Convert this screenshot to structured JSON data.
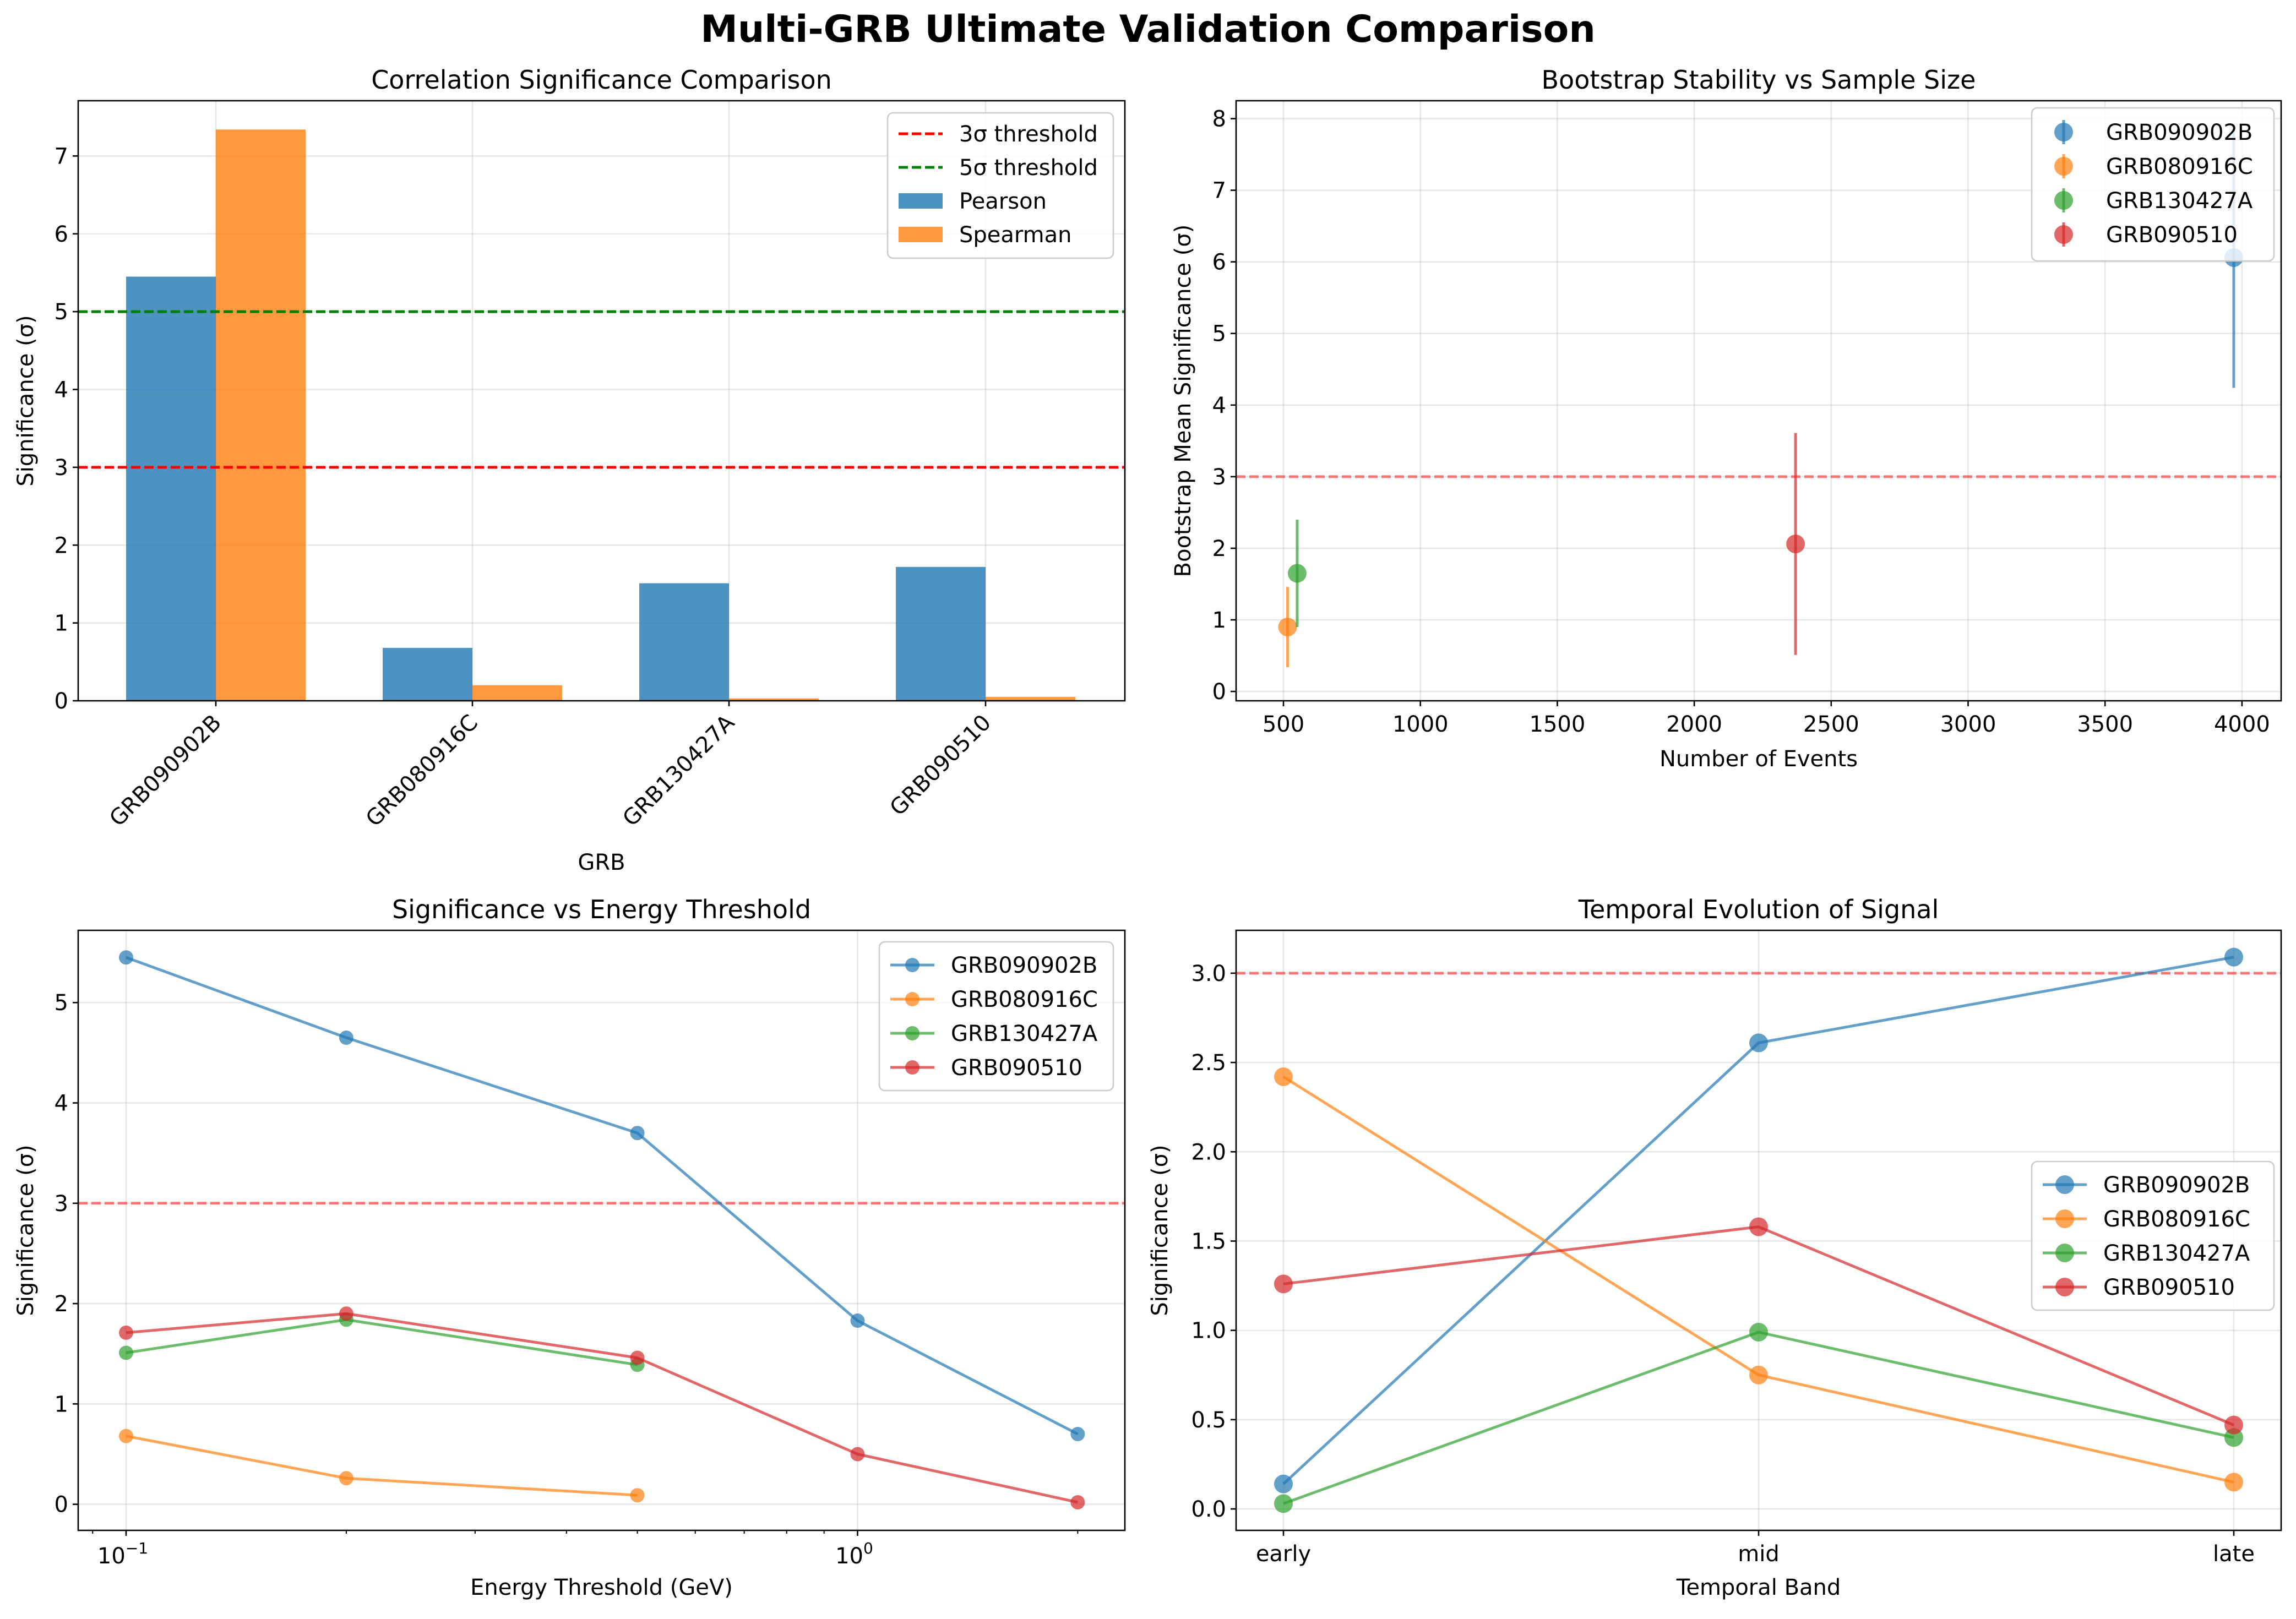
{
  "figure": {
    "title": "Multi-GRB Ultimate Validation Comparison"
  },
  "colors": {
    "GRB090902B": "#1f77b4",
    "GRB080916C": "#ff7f0e",
    "GRB130427A": "#2ca02c",
    "GRB090510": "#d62728",
    "sigma3": "#ff0000",
    "sigma5": "#008000"
  },
  "chart_data": [
    {
      "id": "bar",
      "type": "bar",
      "title": "Correlation Significance Comparison",
      "xlabel": "GRB",
      "ylabel": "Significance (σ)",
      "categories": [
        "GRB090902B",
        "GRB080916C",
        "GRB130427A",
        "GRB090510"
      ],
      "series": [
        {
          "name": "Pearson",
          "values": [
            5.45,
            0.68,
            1.51,
            1.72
          ]
        },
        {
          "name": "Spearman",
          "values": [
            7.34,
            0.2,
            0.03,
            0.05
          ]
        }
      ],
      "ylim": [
        0,
        7.71
      ],
      "yticks": [
        0,
        1,
        2,
        3,
        4,
        5,
        6,
        7
      ],
      "thresholds": [
        {
          "name": "3σ threshold",
          "value": 3
        },
        {
          "name": "5σ threshold",
          "value": 5
        }
      ],
      "grid": true,
      "legend": "top-right"
    },
    {
      "id": "bootstrap",
      "type": "scatter",
      "title": "Bootstrap Stability vs Sample Size",
      "xlabel": "Number of Events",
      "ylabel": "Bootstrap Mean Significance (σ)",
      "xlim": [
        327,
        4143
      ],
      "ylim": [
        -0.13,
        8.25
      ],
      "xticks": [
        500,
        1000,
        1500,
        2000,
        2500,
        3000,
        3500,
        4000
      ],
      "yticks": [
        0,
        1,
        2,
        3,
        4,
        5,
        6,
        7,
        8
      ],
      "reference_line": 3,
      "series": [
        {
          "name": "GRB090902B",
          "x": 3970,
          "y": 6.06,
          "yerr": 1.82
        },
        {
          "name": "GRB080916C",
          "x": 515,
          "y": 0.9,
          "yerr": 0.56
        },
        {
          "name": "GRB130427A",
          "x": 550,
          "y": 1.65,
          "yerr": 0.75
        },
        {
          "name": "GRB090510",
          "x": 2370,
          "y": 2.06,
          "yerr": 1.55
        }
      ],
      "grid": true,
      "legend": "top-right"
    },
    {
      "id": "energy",
      "type": "line",
      "title": "Significance vs Energy Threshold",
      "xlabel": "Energy Threshold (GeV)",
      "ylabel": "Significance (σ)",
      "xscale": "log",
      "xlim": [
        0.086,
        2.32
      ],
      "ylim": [
        -0.26,
        5.72
      ],
      "yticks": [
        0,
        1,
        2,
        3,
        4,
        5
      ],
      "xticks": [
        {
          "value": 0.1,
          "base": "10",
          "exp": "−1"
        },
        {
          "value": 1,
          "base": "10",
          "exp": "0"
        }
      ],
      "reference_line": 3,
      "series": [
        {
          "name": "GRB090902B",
          "x": [
            0.1,
            0.2,
            0.5,
            1.0,
            2.0
          ],
          "y": [
            5.45,
            4.65,
            3.7,
            1.83,
            0.7
          ]
        },
        {
          "name": "GRB080916C",
          "x": [
            0.1,
            0.2,
            0.5
          ],
          "y": [
            0.68,
            0.26,
            0.09
          ]
        },
        {
          "name": "GRB130427A",
          "x": [
            0.1,
            0.2,
            0.5
          ],
          "y": [
            1.51,
            1.84,
            1.39
          ]
        },
        {
          "name": "GRB090510",
          "x": [
            0.1,
            0.2,
            0.5,
            1.0,
            2.0
          ],
          "y": [
            1.71,
            1.9,
            1.46,
            0.5,
            0.02
          ]
        }
      ],
      "grid": true,
      "legend": "top-right"
    },
    {
      "id": "temporal",
      "type": "line",
      "title": "Temporal Evolution of Signal",
      "xlabel": "Temporal Band",
      "ylabel": "Significance (σ)",
      "categories": [
        "early",
        "mid",
        "late"
      ],
      "ylim": [
        -0.12,
        3.24
      ],
      "yticks": [
        0.0,
        0.5,
        1.0,
        1.5,
        2.0,
        2.5,
        3.0
      ],
      "reference_line": 3,
      "series": [
        {
          "name": "GRB090902B",
          "y": [
            0.14,
            2.61,
            3.09
          ]
        },
        {
          "name": "GRB080916C",
          "y": [
            2.42,
            0.75,
            0.15
          ]
        },
        {
          "name": "GRB130427A",
          "y": [
            0.03,
            0.99,
            0.4
          ]
        },
        {
          "name": "GRB090510",
          "y": [
            1.26,
            1.58,
            0.47
          ]
        }
      ],
      "grid": true,
      "legend": "center-right"
    }
  ]
}
